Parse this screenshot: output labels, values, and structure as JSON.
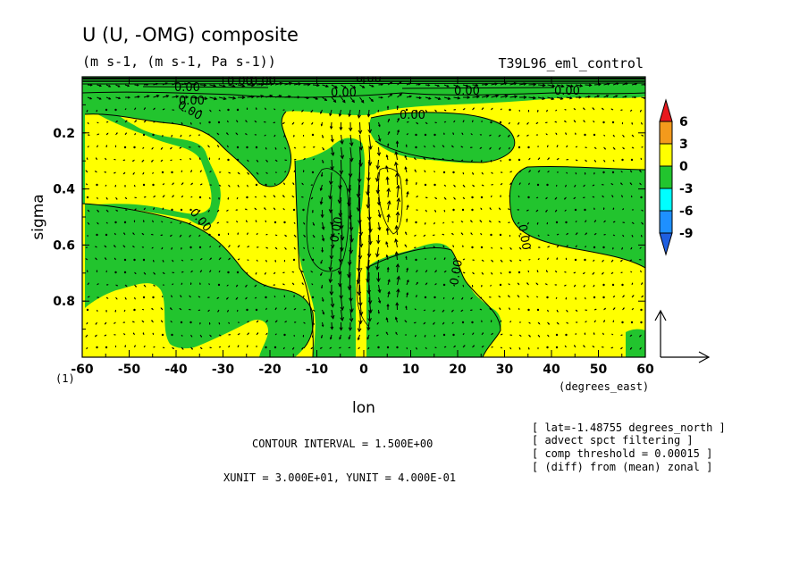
{
  "chart_data": {
    "type": "heatmap",
    "title": "U (U, -OMG) composite",
    "units": "(m s-1, (m s-1, Pa s-1))",
    "run_name": "T39L96_eml_control",
    "xlabel": "lon",
    "xunit_label": "(degrees_east)",
    "ylabel": "sigma",
    "y_extra_label": "(1)",
    "xlim": [
      -60,
      60
    ],
    "ylim": [
      1.0,
      0.0
    ],
    "x_ticks": [
      "-60",
      "-50",
      "-40",
      "-30",
      "-20",
      "-10",
      "0",
      "10",
      "20",
      "30",
      "40",
      "50",
      "60"
    ],
    "y_ticks": [
      "0.2",
      "0.4",
      "0.6",
      "0.8"
    ],
    "y_tick_values": [
      0.2,
      0.4,
      0.6,
      0.8
    ],
    "colorbar": {
      "labels": [
        "6",
        "3",
        "0",
        "-3",
        "-6",
        "-9"
      ],
      "colors": [
        "#e8191e",
        "#f39a1c",
        "#ffff00",
        "#22c42e",
        "#00ffff",
        "#1e90ff",
        "#1f5fe0"
      ]
    },
    "fill_colors": {
      "positive": "#ffff00",
      "negative": "#22c42e"
    },
    "contour_label": "0.00",
    "contour_interval": "CONTOUR INTERVAL = 1.500E+00",
    "vector_units": "XUNIT = 3.000E+01, YUNIT = 4.000E-01",
    "info_lines": [
      "[ lat=-1.48755 degrees_north ]",
      "[ advect spct filtering ]",
      "[ comp threshold = 0.00015 ]",
      "[ (diff) from (mean) zonal ]"
    ]
  }
}
